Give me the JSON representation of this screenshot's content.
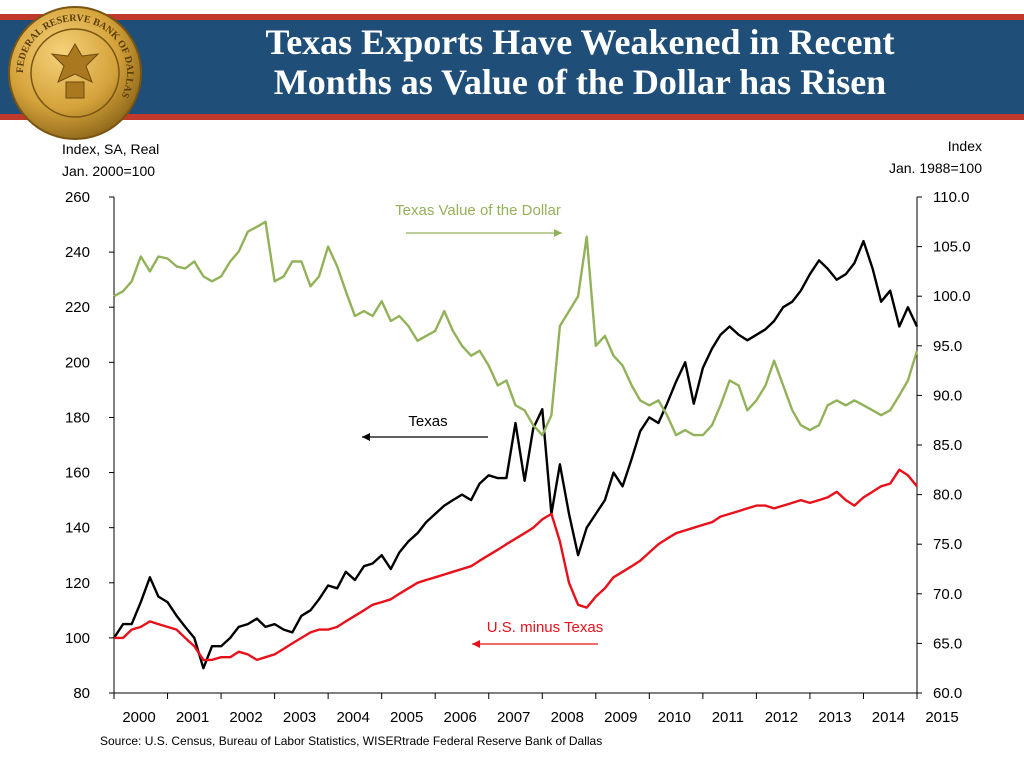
{
  "header": {
    "title_line1": "Texas Exports Have Weakened in Recent",
    "title_line2": "Months as Value of  the Dollar has Risen",
    "seal_text": "FEDERAL RESERVE BANK OF DALLAS"
  },
  "axes": {
    "left_unit_line1": "Index, SA, Real",
    "left_unit_line2": "Jan. 2000=100",
    "right_unit_line1": "Index",
    "right_unit_line2": "Jan. 1988=100"
  },
  "source": "Source: U.S. Census, Bureau of Labor Statistics, WISERtrade Federal Reserve Bank of Dallas",
  "colors": {
    "banner": "#1f4e79",
    "accent": "#c0392b",
    "texas": "#000000",
    "us": "#e8101a",
    "dollar": "#92b25a"
  },
  "chart_data": {
    "type": "line",
    "title": "Texas Exports Have Weakened in Recent Months as Value of the Dollar has Risen",
    "x_ticks": [
      "2000",
      "2001",
      "2002",
      "2003",
      "2004",
      "2005",
      "2006",
      "2007",
      "2008",
      "2009",
      "2010",
      "2011",
      "2012",
      "2013",
      "2014",
      "2015"
    ],
    "xlim": [
      2000,
      2015
    ],
    "y_left": {
      "label": "Index, SA, Real Jan. 2000=100",
      "lim": [
        80,
        260
      ],
      "ticks": [
        "80",
        "100",
        "120",
        "140",
        "160",
        "180",
        "200",
        "220",
        "240",
        "260"
      ]
    },
    "y_right": {
      "label": "Index Jan. 1988=100",
      "lim": [
        60,
        110
      ],
      "ticks": [
        "60.0",
        "65.0",
        "70.0",
        "75.0",
        "80.0",
        "85.0",
        "90.0",
        "95.0",
        "100.0",
        "105.0",
        "110.0"
      ]
    },
    "series": [
      {
        "name": "Texas",
        "axis": "left",
        "x": [
          2000.0,
          2000.17,
          2000.33,
          2000.5,
          2000.67,
          2000.83,
          2001.0,
          2001.17,
          2001.33,
          2001.5,
          2001.67,
          2001.83,
          2002.0,
          2002.17,
          2002.33,
          2002.5,
          2002.67,
          2002.83,
          2003.0,
          2003.17,
          2003.33,
          2003.5,
          2003.67,
          2003.83,
          2004.0,
          2004.17,
          2004.33,
          2004.5,
          2004.67,
          2004.83,
          2005.0,
          2005.17,
          2005.33,
          2005.5,
          2005.67,
          2005.83,
          2006.0,
          2006.17,
          2006.33,
          2006.5,
          2006.67,
          2006.83,
          2007.0,
          2007.17,
          2007.33,
          2007.5,
          2007.67,
          2007.83,
          2008.0,
          2008.17,
          2008.33,
          2008.5,
          2008.67,
          2008.83,
          2009.0,
          2009.17,
          2009.33,
          2009.5,
          2009.67,
          2009.83,
          2010.0,
          2010.17,
          2010.33,
          2010.5,
          2010.67,
          2010.83,
          2011.0,
          2011.17,
          2011.33,
          2011.5,
          2011.67,
          2011.83,
          2012.0,
          2012.17,
          2012.33,
          2012.5,
          2012.67,
          2012.83,
          2013.0,
          2013.17,
          2013.33,
          2013.5,
          2013.67,
          2013.83,
          2014.0,
          2014.17,
          2014.33,
          2014.5,
          2014.67,
          2014.83,
          2015.0
        ],
        "y": [
          100,
          105,
          105,
          113,
          122,
          115,
          113,
          108,
          104,
          100,
          89,
          97,
          97,
          100,
          104,
          105,
          107,
          104,
          105,
          103,
          102,
          108,
          110,
          114,
          119,
          118,
          124,
          121,
          126,
          127,
          130,
          125,
          131,
          135,
          138,
          142,
          145,
          148,
          150,
          152,
          150,
          156,
          159,
          158,
          158,
          178,
          157,
          176,
          183,
          145,
          163,
          145,
          130,
          140,
          145,
          150,
          160,
          155,
          165,
          175,
          180,
          178,
          185,
          193,
          200,
          185,
          198,
          205,
          210,
          213,
          210,
          208,
          210,
          212,
          215,
          220,
          222,
          226,
          232,
          237,
          234,
          230,
          232,
          236,
          244,
          234,
          222,
          226,
          213,
          220,
          213
        ]
      },
      {
        "name": "U.S. minus Texas",
        "axis": "left",
        "x": [
          2000.0,
          2000.17,
          2000.33,
          2000.5,
          2000.67,
          2000.83,
          2001.0,
          2001.17,
          2001.33,
          2001.5,
          2001.67,
          2001.83,
          2002.0,
          2002.17,
          2002.33,
          2002.5,
          2002.67,
          2002.83,
          2003.0,
          2003.17,
          2003.33,
          2003.5,
          2003.67,
          2003.83,
          2004.0,
          2004.17,
          2004.33,
          2004.5,
          2004.67,
          2004.83,
          2005.0,
          2005.17,
          2005.33,
          2005.5,
          2005.67,
          2005.83,
          2006.0,
          2006.17,
          2006.33,
          2006.5,
          2006.67,
          2006.83,
          2007.0,
          2007.17,
          2007.33,
          2007.5,
          2007.67,
          2007.83,
          2008.0,
          2008.17,
          2008.33,
          2008.5,
          2008.67,
          2008.83,
          2009.0,
          2009.17,
          2009.33,
          2009.5,
          2009.67,
          2009.83,
          2010.0,
          2010.17,
          2010.33,
          2010.5,
          2010.67,
          2010.83,
          2011.0,
          2011.17,
          2011.33,
          2011.5,
          2011.67,
          2011.83,
          2012.0,
          2012.17,
          2012.33,
          2012.5,
          2012.67,
          2012.83,
          2013.0,
          2013.17,
          2013.33,
          2013.5,
          2013.67,
          2013.83,
          2014.0,
          2014.17,
          2014.33,
          2014.5,
          2014.67,
          2014.83,
          2015.0
        ],
        "y": [
          100,
          100,
          103,
          104,
          106,
          105,
          104,
          103,
          100,
          97,
          92,
          92,
          93,
          93,
          95,
          94,
          92,
          93,
          94,
          96,
          98,
          100,
          102,
          103,
          103,
          104,
          106,
          108,
          110,
          112,
          113,
          114,
          116,
          118,
          120,
          121,
          122,
          123,
          124,
          125,
          126,
          128,
          130,
          132,
          134,
          136,
          138,
          140,
          143,
          145,
          135,
          120,
          112,
          111,
          115,
          118,
          122,
          124,
          126,
          128,
          131,
          134,
          136,
          138,
          139,
          140,
          141,
          142,
          144,
          145,
          146,
          147,
          148,
          148,
          147,
          148,
          149,
          150,
          149,
          150,
          151,
          153,
          150,
          148,
          151,
          153,
          155,
          156,
          161,
          159,
          155
        ]
      },
      {
        "name": "Texas Value of the Dollar",
        "axis": "right",
        "x": [
          2000.0,
          2000.17,
          2000.33,
          2000.5,
          2000.67,
          2000.83,
          2001.0,
          2001.17,
          2001.33,
          2001.5,
          2001.67,
          2001.83,
          2002.0,
          2002.17,
          2002.33,
          2002.5,
          2002.67,
          2002.83,
          2003.0,
          2003.17,
          2003.33,
          2003.5,
          2003.67,
          2003.83,
          2004.0,
          2004.17,
          2004.33,
          2004.5,
          2004.67,
          2004.83,
          2005.0,
          2005.17,
          2005.33,
          2005.5,
          2005.67,
          2005.83,
          2006.0,
          2006.17,
          2006.33,
          2006.5,
          2006.67,
          2006.83,
          2007.0,
          2007.17,
          2007.33,
          2007.5,
          2007.67,
          2007.83,
          2008.0,
          2008.17,
          2008.33,
          2008.5,
          2008.67,
          2008.83,
          2009.0,
          2009.17,
          2009.33,
          2009.5,
          2009.67,
          2009.83,
          2010.0,
          2010.17,
          2010.33,
          2010.5,
          2010.67,
          2010.83,
          2011.0,
          2011.17,
          2011.33,
          2011.5,
          2011.67,
          2011.83,
          2012.0,
          2012.17,
          2012.33,
          2012.5,
          2012.67,
          2012.83,
          2013.0,
          2013.17,
          2013.33,
          2013.5,
          2013.67,
          2013.83,
          2014.0,
          2014.17,
          2014.33,
          2014.5,
          2014.67,
          2014.83,
          2015.0
        ],
        "y": [
          100.0,
          100.5,
          101.5,
          104.0,
          102.5,
          104.0,
          103.8,
          103.0,
          102.8,
          103.5,
          102.0,
          101.5,
          102.0,
          103.5,
          104.5,
          106.5,
          107.0,
          107.5,
          101.5,
          102.0,
          103.5,
          103.5,
          101.0,
          102.0,
          105.0,
          103.0,
          100.5,
          98.0,
          98.5,
          98.0,
          99.5,
          97.5,
          98.0,
          97.0,
          95.5,
          96.0,
          96.5,
          98.5,
          96.5,
          95.0,
          94.0,
          94.5,
          93.0,
          91.0,
          91.5,
          89.0,
          88.5,
          87.0,
          86.0,
          88.0,
          97.0,
          98.5,
          100.0,
          106.0,
          95.0,
          96.0,
          94.0,
          93.0,
          91.0,
          89.5,
          89.0,
          89.5,
          88.0,
          86.0,
          86.5,
          86.0,
          86.0,
          87.0,
          89.0,
          91.5,
          91.0,
          88.5,
          89.5,
          91.0,
          93.5,
          91.0,
          88.5,
          87.0,
          86.5,
          87.0,
          89.0,
          89.5,
          89.0,
          89.5,
          89.0,
          88.5,
          88.0,
          88.5,
          90.0,
          91.5,
          94.5
        ]
      }
    ],
    "annotations": [
      {
        "text": "Texas Value of the Dollar",
        "series": "Texas Value of the Dollar",
        "arrow": "right"
      },
      {
        "text": "Texas",
        "series": "Texas",
        "arrow": "left"
      },
      {
        "text": "U.S. minus Texas",
        "series": "U.S. minus Texas",
        "arrow": "left"
      }
    ],
    "grid": false,
    "legend": "none"
  }
}
